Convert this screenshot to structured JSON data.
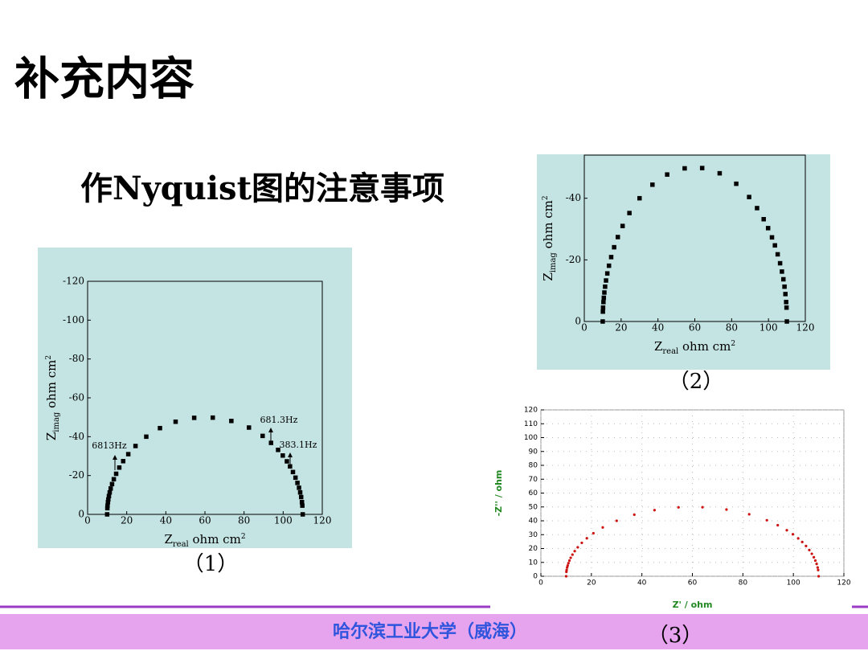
{
  "title": "补充内容",
  "subtitle": "作Nyquist图的注意事项",
  "footer": "哈尔滨工业大学（威海）",
  "chart_data": [
    {
      "type": "scatter",
      "caption": "（1）",
      "xlabel": [
        "Z",
        "real",
        " ohm cm",
        "2"
      ],
      "ylabel": [
        "Z",
        "imag",
        " ohm cm",
        "2"
      ],
      "annotations": [
        "6813Hz",
        "681.3Hz",
        "383.1Hz"
      ],
      "marker": "square",
      "color": "#000000",
      "background": "#c4e3e3",
      "xlim": [
        0,
        120
      ],
      "ylim": [
        0,
        -120
      ],
      "xticks": [
        0,
        20,
        40,
        60,
        80,
        100,
        120
      ],
      "yticks": [
        0,
        -20,
        -40,
        -60,
        -80,
        -100,
        -120
      ],
      "x": [
        10,
        10.1,
        10.2,
        10.4,
        10.6,
        10.9,
        11.3,
        11.8,
        12.5,
        13.4,
        14.6,
        16.2,
        18.2,
        20.8,
        24.5,
        30,
        37,
        45,
        54.5,
        64,
        73.5,
        82.5,
        89.5,
        93.8,
        97.4,
        99.8,
        101.9,
        103.5,
        105,
        106.3,
        107.3,
        108.1,
        108.7,
        109.2,
        109.6,
        109.8,
        110
      ],
      "values": [
        0,
        -3.2,
        -4.5,
        -6.3,
        -7.7,
        -9.4,
        -11.3,
        -13.3,
        -15.6,
        -18.1,
        -20.9,
        -24.1,
        -27.4,
        -31.0,
        -35.2,
        -40,
        -44.4,
        -47.7,
        -49.7,
        -49.8,
        -48.1,
        -44.7,
        -40.4,
        -36.8,
        -33.2,
        -30.3,
        -27.3,
        -24.7,
        -21.8,
        -18.9,
        -16.2,
        -13.7,
        -11.3,
        -8.9,
        -6.3,
        -4.5,
        0
      ]
    },
    {
      "type": "scatter",
      "caption": "（2）",
      "xlabel": [
        "Z",
        "real",
        " ohm cm",
        "2"
      ],
      "ylabel": [
        "Z",
        "imag",
        " ohm cm",
        "2"
      ],
      "marker": "square",
      "color": "#000000",
      "background": "#c4e3e3",
      "xlim": [
        0,
        120
      ],
      "ylim": [
        0,
        -54
      ],
      "xticks": [
        0,
        20,
        40,
        60,
        80,
        100,
        120
      ],
      "yticks": [
        0,
        -20,
        -40
      ],
      "x": [
        10,
        10.1,
        10.2,
        10.4,
        10.6,
        10.9,
        11.3,
        11.8,
        12.5,
        13.4,
        14.6,
        16.2,
        18.2,
        20.8,
        24.5,
        30,
        37,
        45,
        54.5,
        64,
        73.5,
        82.5,
        89.5,
        93.8,
        97.4,
        99.8,
        101.9,
        103.5,
        105,
        106.3,
        107.3,
        108.1,
        108.7,
        109.2,
        109.6,
        109.8,
        110
      ],
      "values": [
        0,
        -3.2,
        -4.5,
        -6.3,
        -7.7,
        -9.4,
        -11.3,
        -13.3,
        -15.6,
        -18.1,
        -20.9,
        -24.1,
        -27.4,
        -31.0,
        -35.2,
        -40,
        -44.4,
        -47.7,
        -49.7,
        -49.8,
        -48.1,
        -44.7,
        -40.4,
        -36.8,
        -33.2,
        -30.3,
        -27.3,
        -24.7,
        -21.8,
        -18.9,
        -16.2,
        -13.7,
        -11.3,
        -8.9,
        -6.3,
        -4.5,
        0
      ]
    },
    {
      "type": "scatter",
      "caption": "（3）",
      "xlabel": [
        "Z' / ohm"
      ],
      "ylabel": [
        "-Z'' / ohm"
      ],
      "marker": "circle",
      "color": "#cc1111",
      "background": "#ffffff",
      "label_color": "#228822",
      "grid": true,
      "xlim": [
        0,
        120
      ],
      "ylim": [
        0,
        120
      ],
      "xticks": [
        0,
        20,
        40,
        60,
        80,
        100,
        120
      ],
      "yticks": [
        0,
        10,
        20,
        30,
        40,
        50,
        60,
        70,
        80,
        90,
        100,
        110,
        120
      ],
      "x": [
        10,
        10.1,
        10.2,
        10.4,
        10.6,
        10.9,
        11.3,
        11.8,
        12.5,
        13.4,
        14.6,
        16.2,
        18.2,
        20.8,
        24.5,
        30,
        37,
        45,
        54.5,
        64,
        73.5,
        82.5,
        89.5,
        93.8,
        97.4,
        99.8,
        101.9,
        103.5,
        105,
        106.3,
        107.3,
        108.1,
        108.7,
        109.2,
        109.6,
        109.8,
        110
      ],
      "values": [
        0,
        3.2,
        4.5,
        6.3,
        7.7,
        9.4,
        11.3,
        13.3,
        15.6,
        18.1,
        20.9,
        24.1,
        27.4,
        31.0,
        35.2,
        40,
        44.4,
        47.7,
        49.7,
        49.8,
        48.1,
        44.7,
        40.4,
        36.8,
        33.2,
        30.3,
        27.3,
        24.7,
        21.8,
        18.9,
        16.2,
        13.7,
        11.3,
        8.9,
        6.3,
        4.5,
        0
      ]
    }
  ]
}
